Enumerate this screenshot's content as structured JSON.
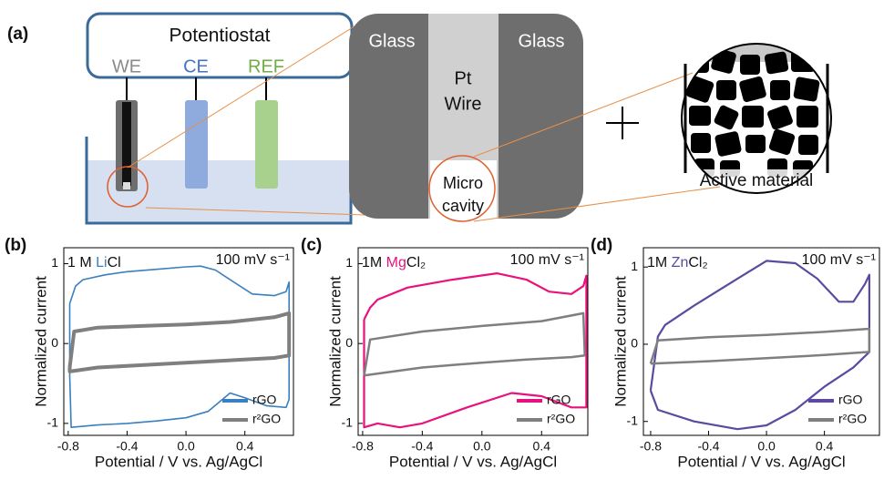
{
  "diagram": {
    "panel_label": "(a)",
    "potentiostat": "Potentiostat",
    "we": "WE",
    "ce": "CE",
    "ref": "REF",
    "glass_left": "Glass",
    "glass_right": "Glass",
    "pt": "Pt",
    "wire": "Wire",
    "micro": "Micro",
    "cavity": "cavity",
    "active_material": "Active material"
  },
  "chart_data": [
    {
      "type": "line",
      "panel_label": "(b)",
      "label_parts": [
        {
          "text": "1 M "
        },
        {
          "text": "Li",
          "color": "#3a7fbf"
        },
        {
          "text": "Cl"
        }
      ],
      "rate": "100 mV s⁻¹",
      "xlabel": "Potential / V vs. Ag/AgCl",
      "ylabel": "Normalized current",
      "xlim": [
        -0.83,
        0.73
      ],
      "ylim": [
        -1.15,
        1.2
      ],
      "xticks": [
        -0.8,
        -0.4,
        {
          "value": 0,
          "label": "0.0"
        },
        0.4
      ],
      "yticks": [
        -1,
        0,
        1
      ],
      "legend": "lower right",
      "series": [
        {
          "name": "rGO",
          "color": "#3a7fbf",
          "line_width": 1.6,
          "x": [
            -0.79,
            -0.75,
            -0.7,
            -0.55,
            -0.4,
            -0.2,
            0,
            0.1,
            0.2,
            0.3,
            0.45,
            0.6,
            0.68,
            0.7,
            0.7,
            0.68,
            0.55,
            0.4,
            0.3,
            0.15,
            0,
            -0.2,
            -0.4,
            -0.6,
            -0.78,
            -0.79,
            -0.79
          ],
          "values": [
            0.5,
            0.72,
            0.8,
            0.86,
            0.9,
            0.93,
            0.96,
            0.97,
            0.92,
            0.8,
            0.62,
            0.6,
            0.65,
            0.77,
            -0.7,
            -0.8,
            -0.78,
            -0.68,
            -0.62,
            -0.85,
            -0.93,
            -0.97,
            -1.0,
            -1.02,
            -1.05,
            -0.4,
            0.5
          ]
        },
        {
          "name": "r²GO",
          "color": "#7f7f7f",
          "line_width": 4,
          "x": [
            -0.79,
            -0.76,
            -0.6,
            -0.3,
            0,
            0.3,
            0.6,
            0.7,
            0.7,
            0.6,
            0.3,
            0,
            -0.3,
            -0.6,
            -0.79,
            -0.79
          ],
          "values": [
            -0.3,
            0.15,
            0.2,
            0.22,
            0.24,
            0.27,
            0.33,
            0.38,
            -0.15,
            -0.18,
            -0.21,
            -0.24,
            -0.27,
            -0.3,
            -0.35,
            -0.3
          ]
        }
      ]
    },
    {
      "type": "line",
      "panel_label": "(c)",
      "label_parts": [
        {
          "text": "1M "
        },
        {
          "text": "Mg",
          "color": "#e8127c"
        },
        {
          "text": "Cl₂"
        }
      ],
      "rate": "100 mV s⁻¹",
      "xlabel": "Potential / V vs. Ag/AgCl",
      "ylabel": "Normalized current",
      "xlim": [
        -0.83,
        0.71
      ],
      "ylim": [
        -1.15,
        1.2
      ],
      "xticks": [
        -0.8,
        -0.4,
        {
          "value": 0,
          "label": "0.0"
        },
        0.4
      ],
      "yticks": [
        -1,
        0,
        1
      ],
      "legend": "lower right",
      "series": [
        {
          "name": "rGO",
          "color": "#e8127c",
          "line_width": 2.2,
          "x": [
            -0.79,
            -0.75,
            -0.7,
            -0.5,
            -0.2,
            0.1,
            0.3,
            0.45,
            0.6,
            0.68,
            0.7,
            0.7,
            0.6,
            0.4,
            0.2,
            -0.1,
            -0.4,
            -0.55,
            -0.7,
            -0.79,
            -0.79
          ],
          "values": [
            0.3,
            0.45,
            0.55,
            0.7,
            0.8,
            0.88,
            0.8,
            0.65,
            0.62,
            0.72,
            0.85,
            -0.8,
            -0.8,
            -0.66,
            -0.62,
            -0.8,
            -1.0,
            -1.05,
            -1.0,
            -1.05,
            0.3
          ]
        },
        {
          "name": "r²GO",
          "color": "#7f7f7f",
          "line_width": 2.5,
          "x": [
            -0.79,
            -0.75,
            -0.4,
            0,
            0.4,
            0.68,
            0.69,
            0.6,
            0.3,
            0,
            -0.4,
            -0.79,
            -0.79
          ],
          "values": [
            -0.4,
            0.05,
            0.15,
            0.22,
            0.28,
            0.38,
            -0.15,
            -0.17,
            -0.2,
            -0.24,
            -0.3,
            -0.4,
            -0.4
          ]
        }
      ]
    },
    {
      "type": "line",
      "panel_label": "(d)",
      "label_parts": [
        {
          "text": "1M "
        },
        {
          "text": "Zn",
          "color": "#5b4aa0"
        },
        {
          "text": "Cl₂"
        }
      ],
      "rate": "100 mV s⁻¹",
      "xlabel": "Potential / V vs. Ag/AgCl",
      "ylabel": "Normalized current",
      "xlim": [
        -0.85,
        0.78
      ],
      "ylim": [
        -1.18,
        1.25
      ],
      "xticks": [
        -0.8,
        -0.4,
        {
          "value": 0,
          "label": "0.0"
        },
        0.4
      ],
      "yticks": [
        -1,
        0,
        1
      ],
      "legend": "lower right",
      "series": [
        {
          "name": "rGO",
          "color": "#5b4aa0",
          "line_width": 2.2,
          "x": [
            -0.8,
            -0.75,
            -0.7,
            -0.5,
            -0.2,
            0,
            0.2,
            0.35,
            0.5,
            0.6,
            0.68,
            0.71,
            0.71,
            0.6,
            0.4,
            0.2,
            0,
            -0.2,
            -0.5,
            -0.75,
            -0.8
          ],
          "values": [
            -0.6,
            0.1,
            0.25,
            0.5,
            0.85,
            1.08,
            1.05,
            0.85,
            0.55,
            0.55,
            0.78,
            0.9,
            -0.1,
            -0.3,
            -0.55,
            -0.85,
            -1.05,
            -1.1,
            -1.0,
            -0.85,
            -0.6
          ]
        },
        {
          "name": "r²GO",
          "color": "#7f7f7f",
          "line_width": 2.5,
          "x": [
            -0.8,
            -0.75,
            -0.4,
            0,
            0.4,
            0.71,
            0.71,
            0.4,
            0,
            -0.4,
            -0.8
          ],
          "values": [
            -0.25,
            0.05,
            0.09,
            0.12,
            0.16,
            0.2,
            -0.1,
            -0.14,
            -0.18,
            -0.22,
            -0.25
          ]
        }
      ]
    }
  ]
}
